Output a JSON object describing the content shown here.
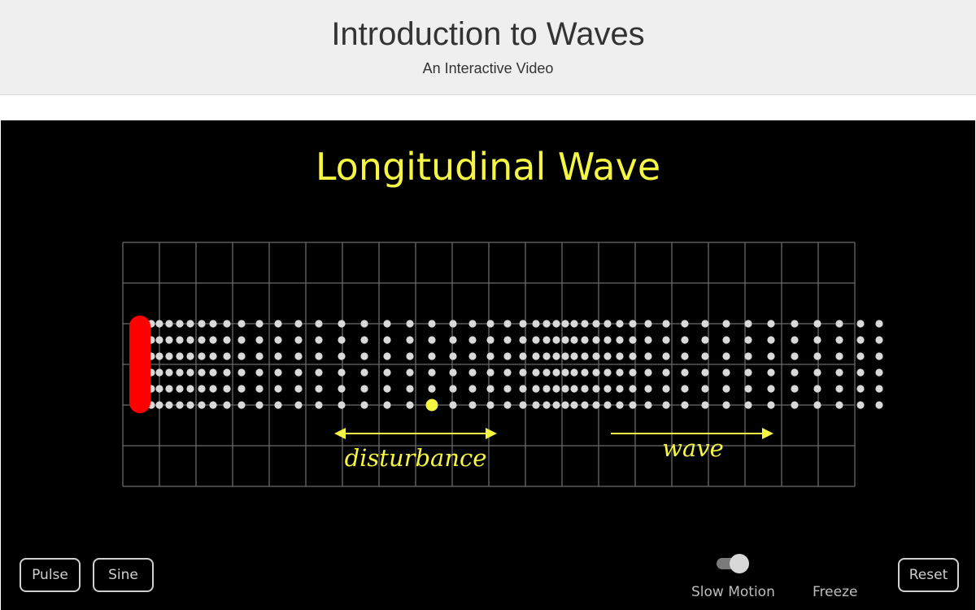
{
  "header": {
    "title": "Introduction to Waves",
    "subtitle": "An Interactive Video"
  },
  "stage": {
    "title": "Longitudinal Wave",
    "labels": {
      "disturbance": "disturbance",
      "wave": "wave"
    }
  },
  "controls": {
    "pulse_label": "Pulse",
    "sine_label": "Sine",
    "slow_motion_label": "Slow Motion",
    "slow_motion_on": true,
    "freeze_label": "Freeze",
    "reset_label": "Reset"
  },
  "colors": {
    "accent": "#f5f543",
    "driver": "#ff0000",
    "particle": "#d9d9d9",
    "grid": "#6a6a6a",
    "background": "#000000"
  }
}
